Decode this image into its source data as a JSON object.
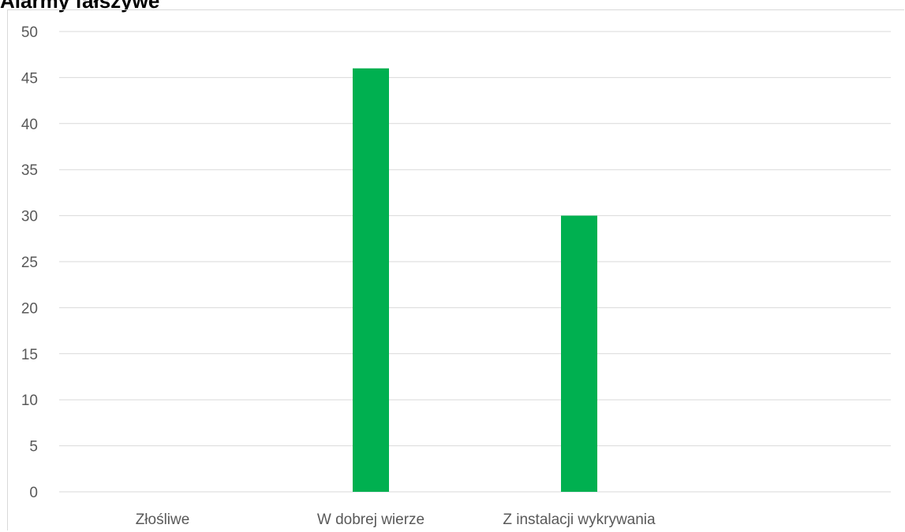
{
  "chart_data": {
    "type": "bar",
    "title": "Alarmy fałszywe",
    "categories": [
      "Złośliwe",
      "W dobrej wierze",
      "Z instalacji wykrywania"
    ],
    "values": [
      0,
      46,
      30
    ],
    "ylim": [
      0,
      50
    ],
    "yticks": [
      "0",
      "5",
      "10",
      "15",
      "20",
      "25",
      "30",
      "35",
      "40",
      "45",
      "50"
    ],
    "xlabel": "",
    "ylabel": "",
    "grid": true,
    "legend": "none",
    "bar_color": "#00b050",
    "grid_color": "#d9d9d9"
  }
}
